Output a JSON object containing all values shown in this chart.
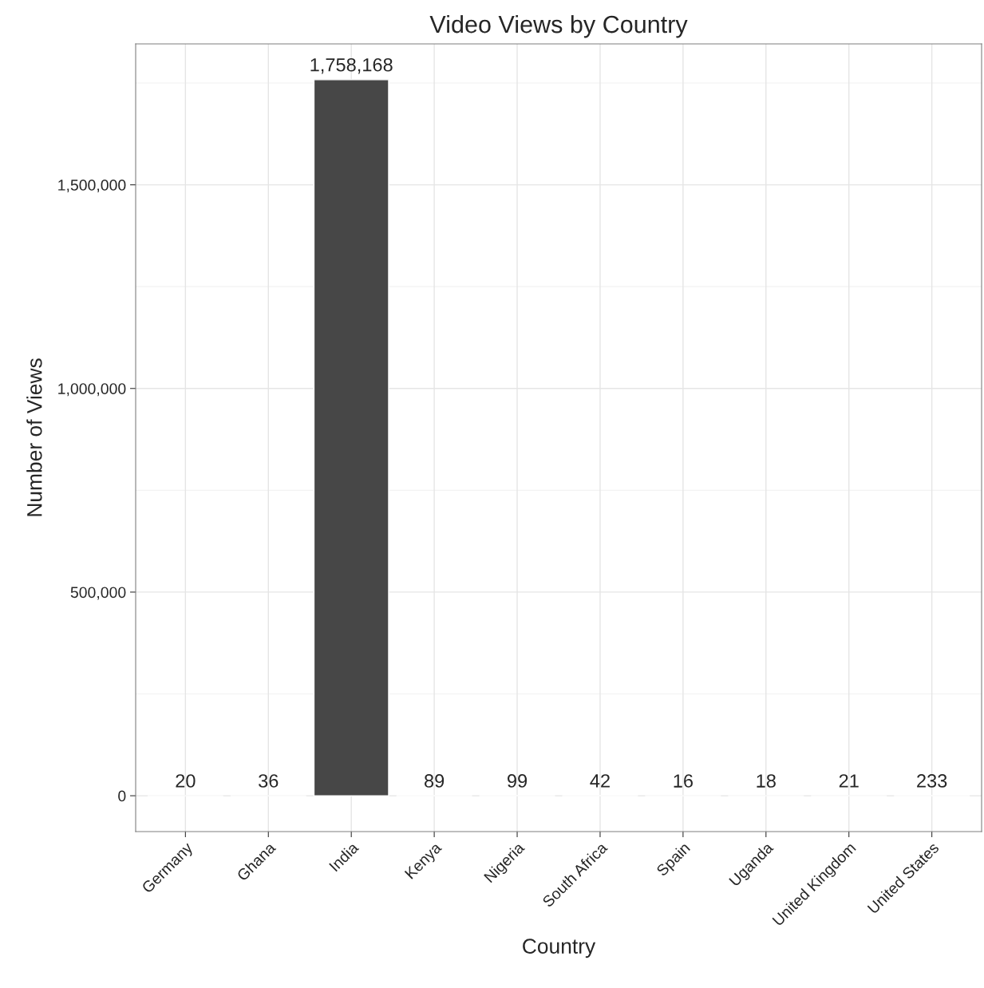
{
  "chart_data": {
    "type": "bar",
    "title": "Video Views by Country",
    "xlabel": "Country",
    "ylabel": "Number of Views",
    "categories": [
      "Germany",
      "Ghana",
      "India",
      "Kenya",
      "Nigeria",
      "South Africa",
      "Spain",
      "Uganda",
      "United Kingdom",
      "United States"
    ],
    "values": [
      20,
      36,
      1758168,
      89,
      99,
      42,
      16,
      18,
      21,
      233
    ],
    "color": "#474747",
    "ylim": [
      -88000,
      1846000
    ],
    "yticks": [
      {
        "value": 0,
        "label": "0"
      },
      {
        "value": 500000,
        "label": "500,000"
      },
      {
        "value": 1000000,
        "label": "1,000,000"
      },
      {
        "value": 1500000,
        "label": "1,500,000"
      }
    ],
    "value_labels": [
      "20",
      "36",
      "1,758,168",
      "89",
      "99",
      "42",
      "16",
      "18",
      "21",
      "233"
    ],
    "grid": true
  }
}
